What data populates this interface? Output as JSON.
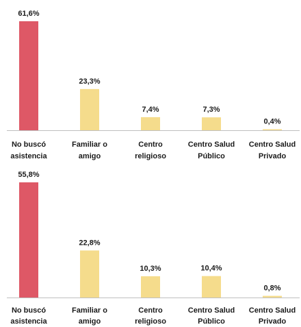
{
  "colors": {
    "highlight": "#DE5866",
    "normal": "#F5DC8C",
    "axis": "#BFBFBF",
    "text": "#1a1a1a"
  },
  "chart_data": [
    {
      "type": "bar",
      "categories": [
        [
          "No buscó",
          "asistencia"
        ],
        [
          "Familiar o",
          "amigo"
        ],
        [
          "Centro",
          "religioso"
        ],
        [
          "Centro Salud",
          "Público"
        ],
        [
          "Centro Salud",
          "Privado"
        ]
      ],
      "values": [
        61.6,
        23.3,
        7.4,
        7.3,
        0.4
      ],
      "value_labels": [
        "61,6%",
        "23,3%",
        "7,4%",
        "7,3%",
        "0,4%"
      ],
      "highlight_index": 0,
      "ylim": [
        0,
        61.6
      ]
    },
    {
      "type": "bar",
      "categories": [
        [
          "No buscó",
          "asistencia"
        ],
        [
          "Familiar o",
          "amigo"
        ],
        [
          "Centro",
          "religioso"
        ],
        [
          "Centro Salud",
          "Público"
        ],
        [
          "Centro Salud",
          "Privado"
        ]
      ],
      "values": [
        55.8,
        22.8,
        10.3,
        10.4,
        0.8
      ],
      "value_labels": [
        "55,8%",
        "22,8%",
        "10,3%",
        "10,4%",
        "0,8%"
      ],
      "highlight_index": 0,
      "ylim": [
        0,
        55.8
      ]
    }
  ]
}
